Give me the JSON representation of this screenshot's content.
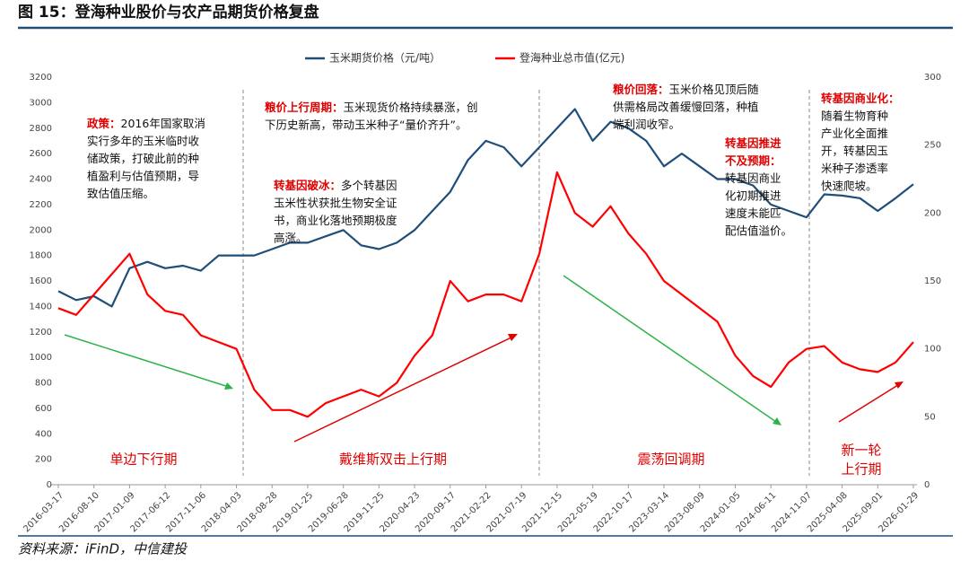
{
  "header": {
    "title": "图 15：登海种业股价与农产品期货价格复盘"
  },
  "chart_data": {
    "type": "line",
    "categories": [
      "2016-03-17",
      null,
      "2016-08-10",
      null,
      "2017-01-09",
      null,
      "2017-06-12",
      null,
      "2017-11-06",
      null,
      "2018-04-03",
      null,
      "2018-08-28",
      null,
      "2019-01-25",
      null,
      "2019-06-28",
      null,
      "2019-11-25",
      null,
      "2020-04-23",
      null,
      "2020-09-17",
      null,
      "2021-02-22",
      null,
      "2021-07-19",
      null,
      "2021-12-15",
      null,
      "2022-05-19",
      null,
      "2022-10-17",
      null,
      "2023-03-14",
      null,
      "2023-08-09",
      null,
      "2024-01-05",
      null,
      "2024-06-11",
      null,
      "2024-11-07",
      null,
      "2025-04-08",
      null,
      "2025-09-01",
      null,
      "2026-01-29"
    ],
    "series": [
      {
        "name": "玉米期货价格（元/吨）",
        "color": "#1f4e79",
        "values": [
          1520,
          1450,
          1480,
          1400,
          1700,
          1750,
          1700,
          1720,
          1680,
          1800,
          1800,
          1800,
          1850,
          1900,
          1900,
          1950,
          2000,
          1880,
          1850,
          1900,
          2000,
          2150,
          2300,
          2550,
          2700,
          2650,
          2500,
          2650,
          2800,
          2950,
          2700,
          2850,
          2800,
          2700,
          2500,
          2600,
          2500,
          2400,
          2400,
          2350,
          2200,
          2150,
          2100,
          2280,
          2270,
          2250,
          2150,
          2250,
          2360
        ]
      },
      {
        "name": "登海种业总市值(亿元)",
        "color": "#ff0000",
        "axis": "y2",
        "values": [
          130,
          125,
          140,
          155,
          170,
          140,
          128,
          125,
          110,
          105,
          100,
          70,
          55,
          55,
          50,
          60,
          65,
          70,
          65,
          75,
          95,
          110,
          150,
          135,
          140,
          140,
          135,
          170,
          230,
          200,
          190,
          205,
          185,
          170,
          150,
          140,
          130,
          120,
          95,
          80,
          72,
          90,
          100,
          102,
          90,
          85,
          83,
          90,
          105
        ]
      }
    ],
    "ylim": [
      0,
      3200
    ],
    "yticks": [
      0,
      200,
      400,
      600,
      800,
      1000,
      1200,
      1400,
      1600,
      1800,
      2000,
      2200,
      2400,
      2600,
      2800,
      3000,
      3200
    ],
    "y2lim": [
      0,
      300
    ],
    "y2ticks": [
      0,
      50,
      100,
      150,
      200,
      250,
      300
    ],
    "legend": "top",
    "annotations": [
      {
        "lines": [
          {
            "emph": "政策：",
            "text": "2016年国家取消"
          },
          {
            "text": "实行多年的玉米临时收"
          },
          {
            "text": "储政策，打破此前的种"
          },
          {
            "text": "植盈利与估值预期，导"
          },
          {
            "text": "致估值压缩。"
          }
        ]
      },
      {
        "lines": [
          {
            "emph": "粮价上行周期：",
            "text": "玉米现货价格持续暴涨，创"
          },
          {
            "text": "下历史新高，带动玉米种子“量价齐升”。"
          }
        ]
      },
      {
        "lines": [
          {
            "emph": "转基因破冰：",
            "text": "多个转基因"
          },
          {
            "text": "玉米性状获批生物安全证"
          },
          {
            "text": "书，商业化落地预期极度"
          },
          {
            "text": "高涨。"
          }
        ]
      },
      {
        "lines": [
          {
            "emph": "粮价回落：",
            "text": "玉米价格见顶后随"
          },
          {
            "text": "供需格局改善缓慢回落，种植"
          },
          {
            "text": "端利润收窄。"
          }
        ]
      },
      {
        "lines": [
          {
            "emph": "转基因推进"
          },
          {
            "emph": "不及预期："
          },
          {
            "text": "转基因商业"
          },
          {
            "text": "化初期推进"
          },
          {
            "text": "速度未能匹"
          },
          {
            "text": "配估值溢价。"
          }
        ]
      },
      {
        "lines": [
          {
            "emph": "转基因商业化："
          },
          {
            "text": "随着生物育种"
          },
          {
            "text": "产业化全面推"
          },
          {
            "text": "开，转基因玉"
          },
          {
            "text": "米种子渗透率"
          },
          {
            "text": "快速爬坡。"
          }
        ]
      }
    ],
    "phases": [
      [
        "单边下行期"
      ],
      [
        "戴维斯双击上行期"
      ],
      [
        "震荡回调期"
      ],
      [
        "新一轮",
        "上行期"
      ]
    ]
  },
  "footer": {
    "source": "资料来源：iFinD，中信建投"
  }
}
